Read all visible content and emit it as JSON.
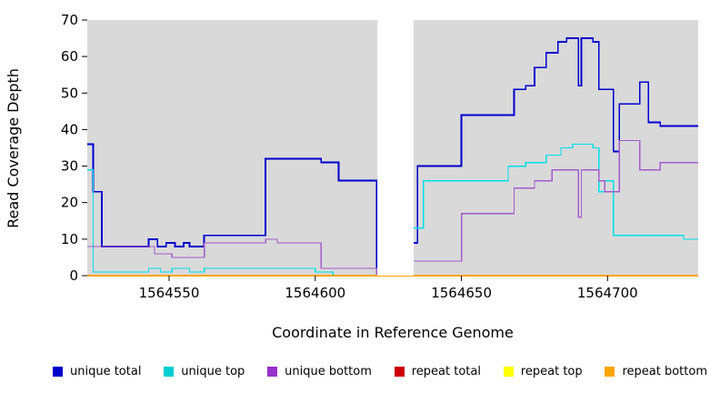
{
  "chart_data": {
    "type": "line",
    "style": "step",
    "title": "",
    "xlabel": "Coordinate in Reference Genome",
    "ylabel": "Read Coverage Depth",
    "xlim": [
      1564522,
      1564731
    ],
    "ylim": [
      0,
      70
    ],
    "xticks": [
      1564550,
      1564600,
      1564650,
      1564700
    ],
    "yticks": [
      0,
      10,
      20,
      30,
      40,
      50,
      60,
      70
    ],
    "plot_bg_color": "#d9d9d9",
    "figure_bg_color": "#ffffff",
    "gap_regions": [
      [
        1564621,
        1564634
      ]
    ],
    "legend_position": "bottom",
    "grid": false,
    "series": [
      {
        "name": "unique total",
        "color": "#0000cd",
        "line_width": 1.8,
        "points": [
          [
            1564522,
            36
          ],
          [
            1564524,
            23
          ],
          [
            1564527,
            8
          ],
          [
            1564543,
            10
          ],
          [
            1564546,
            8
          ],
          [
            1564549,
            9
          ],
          [
            1564552,
            8
          ],
          [
            1564555,
            9
          ],
          [
            1564557,
            8
          ],
          [
            1564562,
            11
          ],
          [
            1564583,
            32
          ],
          [
            1564602,
            31
          ],
          [
            1564608,
            26
          ],
          [
            1564621,
            0
          ],
          [
            1564633,
            9
          ],
          [
            1564635,
            30
          ],
          [
            1564650,
            44
          ],
          [
            1564668,
            51
          ],
          [
            1564672,
            52
          ],
          [
            1564675,
            57
          ],
          [
            1564679,
            61
          ],
          [
            1564683,
            64
          ],
          [
            1564686,
            65
          ],
          [
            1564690,
            52
          ],
          [
            1564691,
            65
          ],
          [
            1564695,
            64
          ],
          [
            1564697,
            51
          ],
          [
            1564702,
            34
          ],
          [
            1564704,
            47
          ],
          [
            1564711,
            53
          ],
          [
            1564714,
            42
          ],
          [
            1564718,
            41
          ],
          [
            1564731,
            41
          ]
        ]
      },
      {
        "name": "unique top",
        "color": "#00e0e8",
        "line_width": 1.3,
        "points": [
          [
            1564522,
            29
          ],
          [
            1564524,
            1
          ],
          [
            1564543,
            2
          ],
          [
            1564547,
            1
          ],
          [
            1564551,
            2
          ],
          [
            1564557,
            1
          ],
          [
            1564562,
            2
          ],
          [
            1564600,
            1
          ],
          [
            1564606,
            0
          ],
          [
            1564633,
            13
          ],
          [
            1564637,
            26
          ],
          [
            1564666,
            30
          ],
          [
            1564672,
            31
          ],
          [
            1564679,
            33
          ],
          [
            1564684,
            35
          ],
          [
            1564688,
            36
          ],
          [
            1564695,
            35
          ],
          [
            1564697,
            23
          ],
          [
            1564699,
            26
          ],
          [
            1564702,
            11
          ],
          [
            1564726,
            10
          ],
          [
            1564731,
            10
          ]
        ]
      },
      {
        "name": "unique bottom",
        "color": "#a35bcc",
        "line_width": 1.3,
        "points": [
          [
            1564522,
            8
          ],
          [
            1564545,
            6
          ],
          [
            1564551,
            5
          ],
          [
            1564562,
            9
          ],
          [
            1564583,
            10
          ],
          [
            1564587,
            9
          ],
          [
            1564602,
            2
          ],
          [
            1564621,
            0
          ],
          [
            1564633,
            4
          ],
          [
            1564650,
            17
          ],
          [
            1564668,
            24
          ],
          [
            1564675,
            26
          ],
          [
            1564681,
            29
          ],
          [
            1564690,
            16
          ],
          [
            1564691,
            29
          ],
          [
            1564697,
            26
          ],
          [
            1564699,
            23
          ],
          [
            1564704,
            37
          ],
          [
            1564711,
            29
          ],
          [
            1564718,
            31
          ],
          [
            1564731,
            31
          ]
        ]
      },
      {
        "name": "repeat total",
        "color": "#cc0000",
        "line_width": 1.5,
        "points": [
          [
            1564522,
            0
          ],
          [
            1564731,
            0
          ]
        ]
      },
      {
        "name": "repeat top",
        "color": "#ffff00",
        "line_width": 1.5,
        "points": [
          [
            1564522,
            0
          ],
          [
            1564731,
            0
          ]
        ]
      },
      {
        "name": "repeat bottom",
        "color": "#ffa500",
        "line_width": 2,
        "points": [
          [
            1564522,
            0
          ],
          [
            1564731,
            0
          ]
        ]
      }
    ],
    "legend_colors": {
      "unique total": "#0000cd",
      "unique top": "#00ced1",
      "unique bottom": "#9932cc",
      "repeat total": "#cc0000",
      "repeat top": "#ffff00",
      "repeat bottom": "#ffa500"
    }
  }
}
